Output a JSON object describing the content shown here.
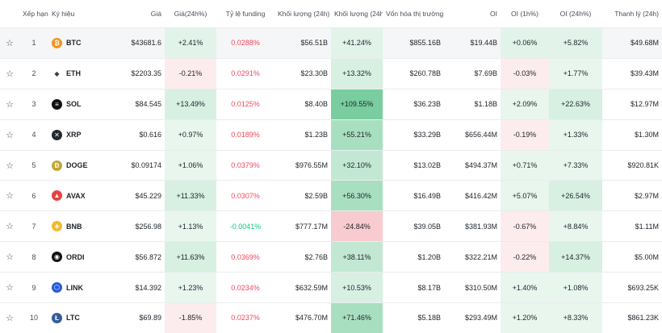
{
  "headers": {
    "rank": "Xếp hạng",
    "symbol": "Ký hiệu",
    "price": "Giá",
    "change24h": "Giá(24h%)",
    "funding": "Tỷ lệ funding",
    "volume24h": "Khối lượng (24h)",
    "volumeChange24h": "Khối lượng (24h%)",
    "marketCap": "Vốn hóa thị trường",
    "oi": "OI",
    "oi1h": "OI (1h%)",
    "oi24h": "OI (24h%)",
    "liquidation": "Thanh lý (24h)"
  },
  "rows": [
    {
      "rank": "1",
      "symbol": "BTC",
      "icon": "bitcoin-icon",
      "iconColor": "#f7931a",
      "iconGlyph": "₿",
      "price": "$43681.6",
      "change": "+2.41%",
      "funding": "0.0288%",
      "volume": "$56.51B",
      "volumeChange": "+41.24%",
      "mcap": "$855.16B",
      "oi": "$19.44B",
      "oi1h": "+0.06%",
      "oi24h": "+5.82%",
      "liq": "$49.68M"
    },
    {
      "rank": "2",
      "symbol": "ETH",
      "icon": "ethereum-icon",
      "iconColor": "#ffffff",
      "iconGlyph": "◆",
      "price": "$2203.35",
      "change": "-0.21%",
      "funding": "0.0291%",
      "volume": "$23.30B",
      "volumeChange": "+13.32%",
      "mcap": "$260.78B",
      "oi": "$7.69B",
      "oi1h": "-0.03%",
      "oi24h": "+1.77%",
      "liq": "$39.43M"
    },
    {
      "rank": "3",
      "symbol": "SOL",
      "icon": "solana-icon",
      "iconColor": "#111111",
      "iconGlyph": "≡",
      "price": "$84.545",
      "change": "+13.49%",
      "funding": "0.0125%",
      "volume": "$8.40B",
      "volumeChange": "+109.55%",
      "mcap": "$36.23B",
      "oi": "$1.18B",
      "oi1h": "+2.09%",
      "oi24h": "+22.63%",
      "liq": "$12.97M"
    },
    {
      "rank": "4",
      "symbol": "XRP",
      "icon": "xrp-icon",
      "iconColor": "#23292f",
      "iconGlyph": "✕",
      "price": "$0.616",
      "change": "+0.97%",
      "funding": "0.0189%",
      "volume": "$1.23B",
      "volumeChange": "+55.21%",
      "mcap": "$33.29B",
      "oi": "$656.44M",
      "oi1h": "-0.19%",
      "oi24h": "+1.33%",
      "liq": "$1.30M"
    },
    {
      "rank": "5",
      "symbol": "DOGE",
      "icon": "dogecoin-icon",
      "iconColor": "#c2a633",
      "iconGlyph": "Ð",
      "price": "$0.09174",
      "change": "+1.06%",
      "funding": "0.0379%",
      "volume": "$976.55M",
      "volumeChange": "+32.10%",
      "mcap": "$13.02B",
      "oi": "$494.37M",
      "oi1h": "+0.71%",
      "oi24h": "+7.33%",
      "liq": "$920.81K"
    },
    {
      "rank": "6",
      "symbol": "AVAX",
      "icon": "avalanche-icon",
      "iconColor": "#e84142",
      "iconGlyph": "▲",
      "price": "$45.229",
      "change": "+11.33%",
      "funding": "0.0307%",
      "volume": "$2.59B",
      "volumeChange": "+56.30%",
      "mcap": "$16.49B",
      "oi": "$416.42M",
      "oi1h": "+5.07%",
      "oi24h": "+26.54%",
      "liq": "$2.97M"
    },
    {
      "rank": "7",
      "symbol": "BNB",
      "icon": "bnb-icon",
      "iconColor": "#f3ba2f",
      "iconGlyph": "◈",
      "price": "$256.98",
      "change": "+1.13%",
      "funding": "-0.0041%",
      "volume": "$777.17M",
      "volumeChange": "-24.84%",
      "mcap": "$39.05B",
      "oi": "$381.93M",
      "oi1h": "-0.67%",
      "oi24h": "+8.84%",
      "liq": "$1.11M"
    },
    {
      "rank": "8",
      "symbol": "ORDI",
      "icon": "ordi-icon",
      "iconColor": "#111111",
      "iconGlyph": "◉",
      "price": "$56.872",
      "change": "+11.63%",
      "funding": "0.0369%",
      "volume": "$2.76B",
      "volumeChange": "+38.11%",
      "mcap": "$1.20B",
      "oi": "$322.21M",
      "oi1h": "-0.22%",
      "oi24h": "+14.37%",
      "liq": "$5.00M"
    },
    {
      "rank": "9",
      "symbol": "LINK",
      "icon": "chainlink-icon",
      "iconColor": "#2a5ada",
      "iconGlyph": "⬡",
      "price": "$14.392",
      "change": "+1.23%",
      "funding": "0.0234%",
      "volume": "$632.59M",
      "volumeChange": "+10.53%",
      "mcap": "$8.17B",
      "oi": "$310.50M",
      "oi1h": "+1.40%",
      "oi24h": "+1.08%",
      "liq": "$693.25K"
    },
    {
      "rank": "10",
      "symbol": "LTC",
      "icon": "litecoin-icon",
      "iconColor": "#345d9d",
      "iconGlyph": "Ł",
      "price": "$69.89",
      "change": "-1.85%",
      "funding": "0.0237%",
      "volume": "$476.70M",
      "volumeChange": "+71.46%",
      "mcap": "$5.18B",
      "oi": "$293.49M",
      "oi1h": "+1.20%",
      "oi24h": "+8.33%",
      "liq": "$861.23K"
    }
  ]
}
